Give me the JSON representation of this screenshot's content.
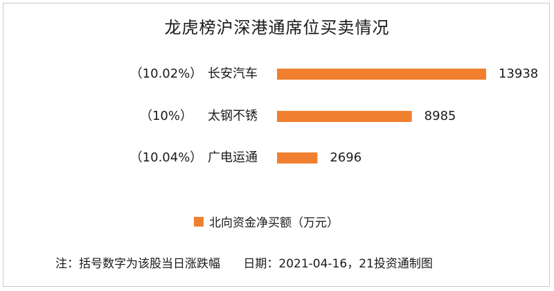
{
  "chart_data": {
    "type": "bar",
    "orientation": "horizontal",
    "title": "龙虎榜沪深港通席位买卖情况",
    "categories": [
      "长安汽车",
      "太钢不锈",
      "广电运通"
    ],
    "change_labels": [
      "（10.02%）",
      "（10%）",
      "（10.04%）"
    ],
    "series": [
      {
        "name": "北向资金净买额（万元）",
        "values": [
          13938,
          8985,
          2696
        ]
      }
    ],
    "value_labels": [
      "13938",
      "8985",
      "2696"
    ],
    "xlim": [
      0,
      13938
    ],
    "grid": false,
    "legend": "bottom-center",
    "bar_color": "#f0802f"
  },
  "footer": {
    "note": "注：括号数字为该股当日涨跌幅",
    "date": "日期：2021-04-16，21投资通制图"
  }
}
